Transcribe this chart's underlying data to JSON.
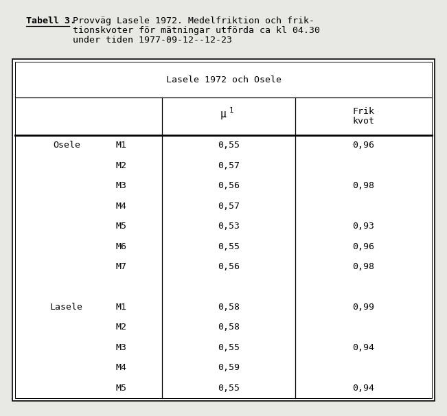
{
  "title_bold": "Tabell 3.",
  "title_rest_line1": " Provväg Lasele 1972. Medelfriktion och frik-",
  "title_rest_line2": "         tionskvoter för mätningar utförda ca kl 04.30",
  "title_rest_line3": "         under tiden 1977-09-12--12-23",
  "table_header": "Lasele 1972 och Osele",
  "mu_label": "μ",
  "mu_sub": "1",
  "frik_label": "Frik\nkvot",
  "groups": [
    {
      "name": "Osele",
      "rows": [
        {
          "label": "M1",
          "mu": "0,55",
          "frik": "0,96"
        },
        {
          "label": "M2",
          "mu": "0,57",
          "frik": ""
        },
        {
          "label": "M3",
          "mu": "0,56",
          "frik": "0,98"
        },
        {
          "label": "M4",
          "mu": "0,57",
          "frik": ""
        },
        {
          "label": "M5",
          "mu": "0,53",
          "frik": "0,93"
        },
        {
          "label": "M6",
          "mu": "0,55",
          "frik": "0,96"
        },
        {
          "label": "M7",
          "mu": "0,56",
          "frik": "0,98"
        }
      ]
    },
    {
      "name": "Lasele",
      "rows": [
        {
          "label": "M1",
          "mu": "0,58",
          "frik": "0,99"
        },
        {
          "label": "M2",
          "mu": "0,58",
          "frik": ""
        },
        {
          "label": "M3",
          "mu": "0,55",
          "frik": "0,94"
        },
        {
          "label": "M4",
          "mu": "0,59",
          "frik": ""
        },
        {
          "label": "M5",
          "mu": "0,55",
          "frik": "0,94"
        }
      ]
    }
  ],
  "bg_color": "#e8e8e4",
  "table_bg": "#ffffff",
  "font_size": 9.5,
  "title_font_size": 9.5
}
